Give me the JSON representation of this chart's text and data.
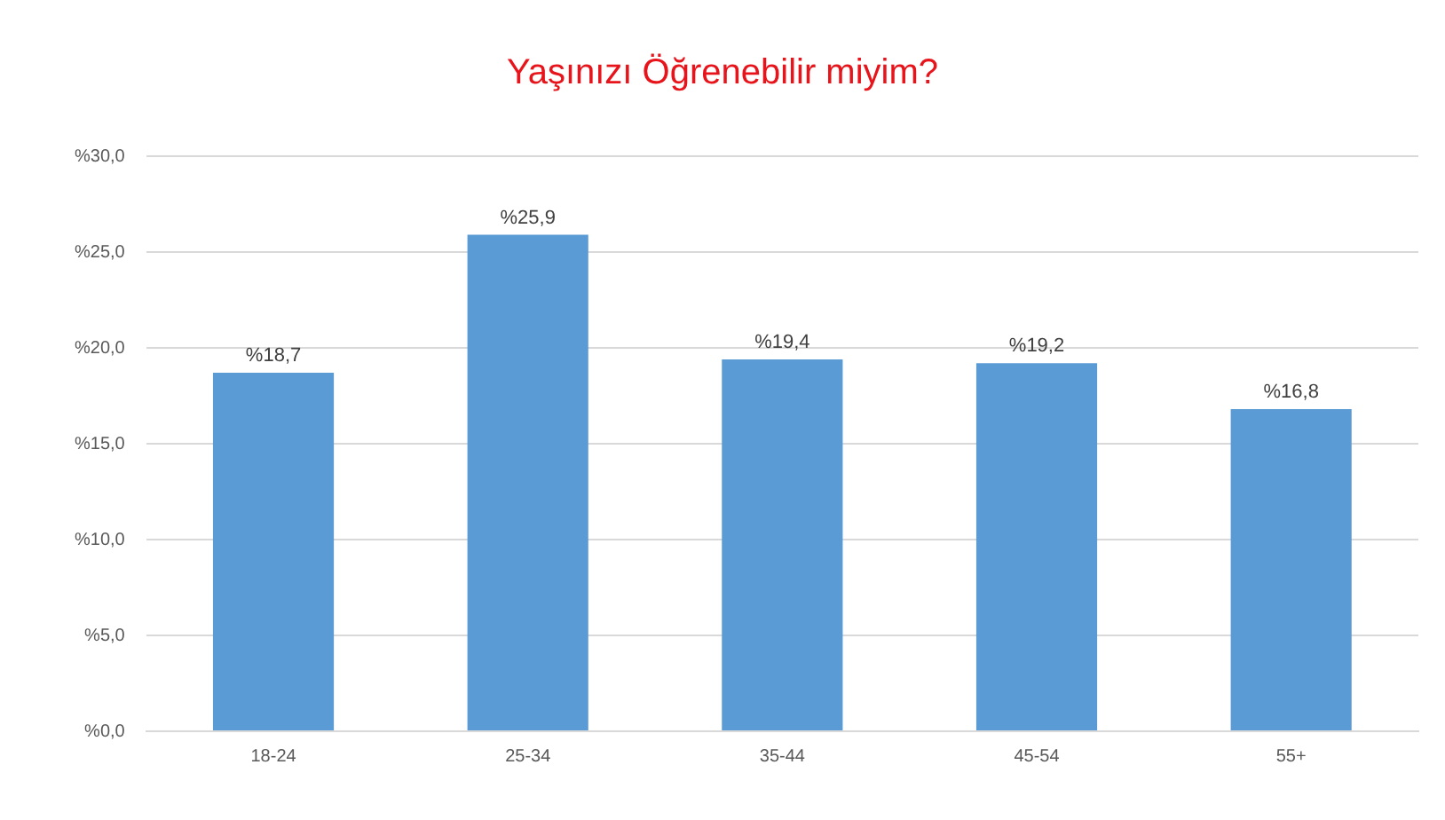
{
  "chart_data": {
    "type": "bar",
    "title": "Yaşınızı Öğrenebilir miyim?",
    "categories": [
      "18-24",
      "25-34",
      "35-44",
      "45-54",
      "55+"
    ],
    "values": [
      18.7,
      25.9,
      19.4,
      19.2,
      16.8
    ],
    "value_labels": [
      "%18,7",
      "%25,9",
      "%19,4",
      "%19,2",
      "%16,8"
    ],
    "color": "#5b9bd5",
    "ylim": [
      0,
      30
    ],
    "yticks": [
      {
        "value": 0,
        "label": "%0,0"
      },
      {
        "value": 5,
        "label": "%5,0"
      },
      {
        "value": 10,
        "label": "%10,0"
      },
      {
        "value": 15,
        "label": "%15,0"
      },
      {
        "value": 20,
        "label": "%20,0"
      },
      {
        "value": 25,
        "label": "%25,0"
      },
      {
        "value": 30,
        "label": "%30,0"
      }
    ],
    "grid": "y",
    "legend": false
  }
}
